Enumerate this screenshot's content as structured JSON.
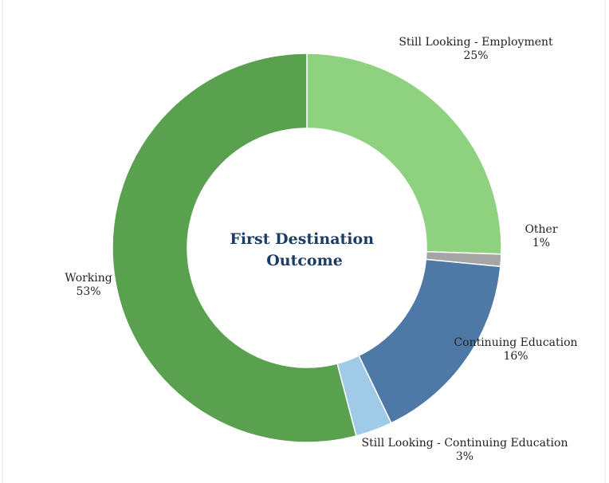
{
  "chart_data": {
    "type": "pie",
    "donut": true,
    "title_lines": [
      "First Destination",
      "Outcome"
    ],
    "legend": "none",
    "slices": [
      {
        "label": "Still Looking - Employment",
        "value": 25,
        "display": "25%",
        "color": "#8ed27f"
      },
      {
        "label": "Other",
        "value": 1,
        "display": "1%",
        "color": "#a5a5a5"
      },
      {
        "label": "Continuing Education",
        "value": 16,
        "display": "16%",
        "color": "#4e79a7"
      },
      {
        "label": "Still Looking - Continuing Education",
        "value": 3,
        "display": "3%",
        "color": "#a0cbe8"
      },
      {
        "label": "Working",
        "value": 53,
        "display": "53%",
        "color": "#59a14f"
      }
    ]
  }
}
